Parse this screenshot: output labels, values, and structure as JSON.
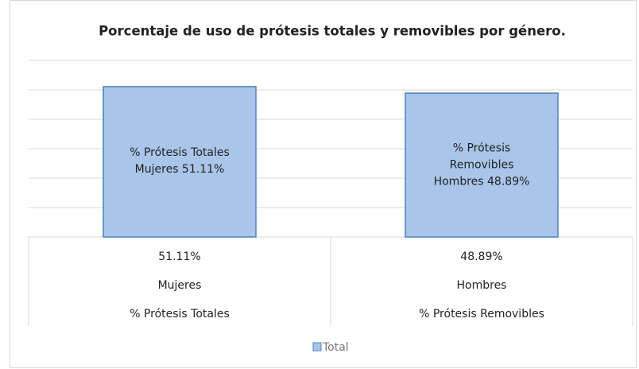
{
  "chart_data": {
    "type": "bar",
    "title": "Porcentaje de uso de prótesis totales y removibles por género.",
    "categories": [
      [
        "51.11%",
        "Mujeres",
        "% Prótesis Totales"
      ],
      [
        "48.89%",
        "Hombres",
        "% Prótesis Removibles"
      ]
    ],
    "series": [
      {
        "name": "Total",
        "color": "#a9c5e9",
        "values": [
          51.11,
          48.89
        ],
        "value_labels": [
          "% Prótesis Totales Mujeres 51.11%",
          "% Prótesis Removibles Hombres 48.89%"
        ]
      }
    ],
    "ylim": [
      0,
      60
    ],
    "yticks": [
      0,
      10,
      20,
      30,
      40,
      50,
      60
    ],
    "grid": true,
    "legend": "bottom"
  }
}
